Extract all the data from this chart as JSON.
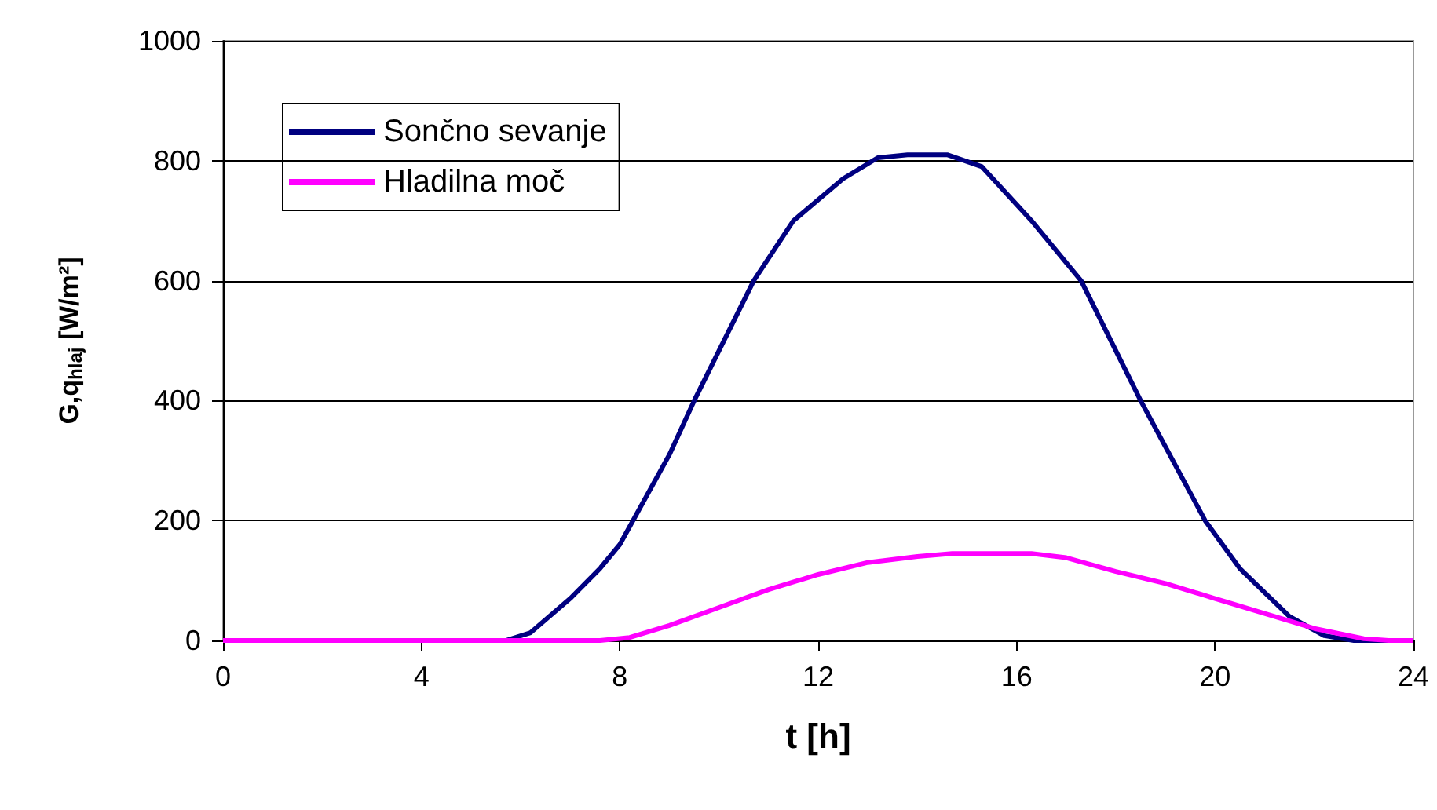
{
  "chart_data": {
    "type": "line",
    "xlabel": "t [h]",
    "ylabel": "G,q$_{hlaj}$ [W/m²]",
    "series": [
      {
        "name": "Sončno sevanje",
        "color": "#000080",
        "x": [
          0,
          5.7,
          6.2,
          7,
          7.6,
          8,
          9,
          9.5,
          10.7,
          11.5,
          12.5,
          13.2,
          13.8,
          14.6,
          15.3,
          16.3,
          17.3,
          18.5,
          19.8,
          20.5,
          21.5,
          22.2,
          22.8,
          24
        ],
        "values": [
          0,
          0,
          13,
          70,
          120,
          160,
          310,
          400,
          600,
          700,
          770,
          805,
          810,
          810,
          790,
          700,
          600,
          400,
          200,
          120,
          40,
          8,
          0,
          0
        ]
      },
      {
        "name": "Hladilna moč",
        "color": "#ff00ff",
        "x": [
          0,
          7.6,
          8.2,
          9,
          10,
          11,
          12,
          13,
          14,
          14.7,
          16.3,
          17,
          18,
          19,
          20,
          21,
          22,
          23,
          23.5,
          24
        ],
        "values": [
          0,
          0,
          5,
          25,
          55,
          85,
          110,
          130,
          140,
          145,
          145,
          138,
          115,
          95,
          70,
          45,
          20,
          3,
          0,
          0
        ]
      }
    ],
    "xlim": [
      0,
      24
    ],
    "xticks": [
      0,
      4,
      8,
      12,
      16,
      20,
      24
    ],
    "ylim": [
      0,
      1000
    ],
    "yticks": [
      0,
      200,
      400,
      600,
      800,
      1000
    ],
    "grid": "y",
    "legend": "top left",
    "marker": "none",
    "line_style": "solid"
  }
}
